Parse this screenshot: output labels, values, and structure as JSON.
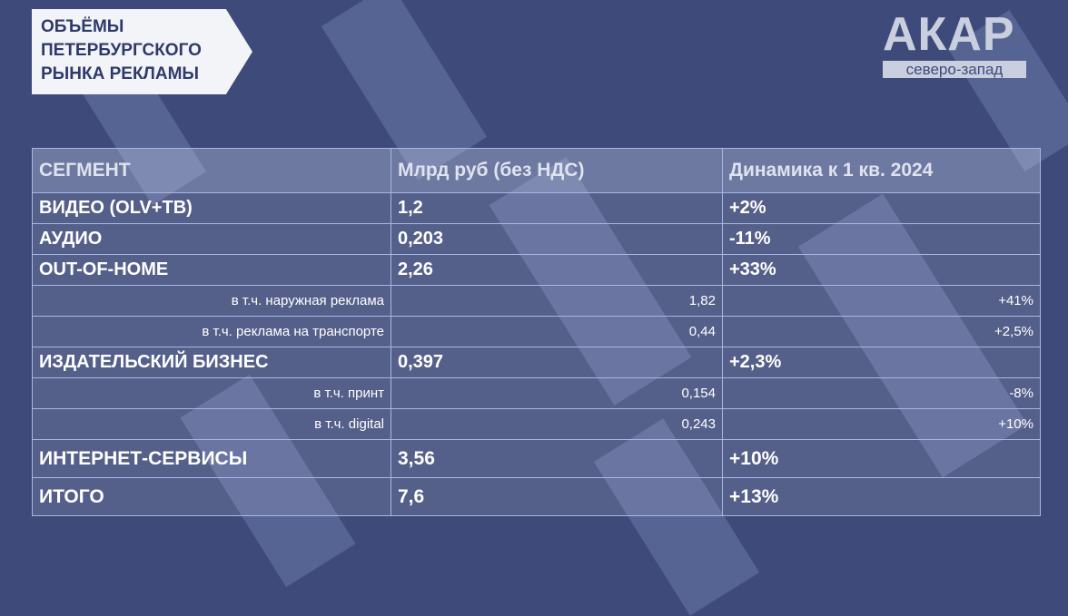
{
  "header": {
    "title": [
      "ОБЪЁМЫ",
      "ПЕТЕРБУРГСКОГО",
      "РЫНКА РЕКЛАМЫ"
    ],
    "logo": "АКАР",
    "logo_subtitle": "северо-запад"
  },
  "table": {
    "header": [
      "СЕГМЕНТ",
      "Млрд руб (без НДС)",
      "Динамика к  1 кв. 2024"
    ],
    "rows": [
      [
        "ВИДЕО (OLV+ТВ)",
        "1,2",
        "+2%"
      ],
      [
        "АУДИО",
        "0,203",
        "-11%"
      ],
      [
        "OUT-OF-HOME",
        "2,26",
        "+33%"
      ],
      [
        "в т.ч. наружная реклама",
        "1,82",
        "+41%"
      ],
      [
        "в т.ч. реклама на транспорте",
        "0,44",
        "+2,5%"
      ],
      [
        "ИЗДАТЕЛЬСКИЙ БИЗНЕС",
        "0,397",
        "+2,3%"
      ],
      [
        "в т.ч. принт",
        "0,154",
        "-8%"
      ],
      [
        "в т.ч. digital",
        "0,243",
        "+10%"
      ],
      [
        "ИНТЕРНЕТ-СЕРВИСЫ",
        "3,56",
        "+10%"
      ],
      [
        "ИТОГО",
        "7,6",
        "+13%"
      ]
    ]
  }
}
